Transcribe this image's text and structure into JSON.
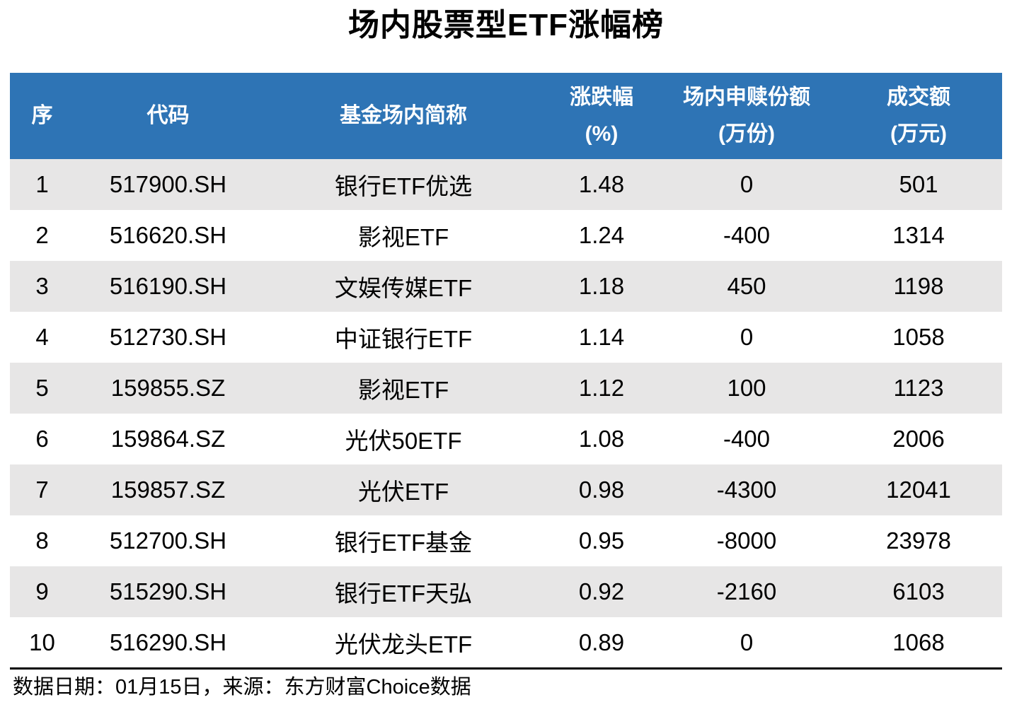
{
  "title": "场内股票型ETF涨幅榜",
  "table": {
    "columns": [
      {
        "label": "序",
        "unit": ""
      },
      {
        "label": "代码",
        "unit": ""
      },
      {
        "label": "基金场内简称",
        "unit": ""
      },
      {
        "label": "涨跌幅",
        "unit": "(%)"
      },
      {
        "label": "场内申赎份额",
        "unit": "(万份)"
      },
      {
        "label": "成交额",
        "unit": "(万元)"
      }
    ],
    "rows": [
      {
        "rank": "1",
        "code": "517900.SH",
        "name": "银行ETF优选",
        "change": "1.48",
        "shares": "0",
        "turnover": "501"
      },
      {
        "rank": "2",
        "code": "516620.SH",
        "name": "影视ETF",
        "change": "1.24",
        "shares": "-400",
        "turnover": "1314"
      },
      {
        "rank": "3",
        "code": "516190.SH",
        "name": "文娱传媒ETF",
        "change": "1.18",
        "shares": "450",
        "turnover": "1198"
      },
      {
        "rank": "4",
        "code": "512730.SH",
        "name": "中证银行ETF",
        "change": "1.14",
        "shares": "0",
        "turnover": "1058"
      },
      {
        "rank": "5",
        "code": "159855.SZ",
        "name": "影视ETF",
        "change": "1.12",
        "shares": "100",
        "turnover": "1123"
      },
      {
        "rank": "6",
        "code": "159864.SZ",
        "name": "光伏50ETF",
        "change": "1.08",
        "shares": "-400",
        "turnover": "2006"
      },
      {
        "rank": "7",
        "code": "159857.SZ",
        "name": "光伏ETF",
        "change": "0.98",
        "shares": "-4300",
        "turnover": "12041"
      },
      {
        "rank": "8",
        "code": "512700.SH",
        "name": "银行ETF基金",
        "change": "0.95",
        "shares": "-8000",
        "turnover": "23978"
      },
      {
        "rank": "9",
        "code": "515290.SH",
        "name": "银行ETF天弘",
        "change": "0.92",
        "shares": "-2160",
        "turnover": "6103"
      },
      {
        "rank": "10",
        "code": "516290.SH",
        "name": "光伏龙头ETF",
        "change": "0.89",
        "shares": "0",
        "turnover": "1068"
      }
    ]
  },
  "footer": {
    "note": "数据日期：01月15日，来源：东方财富Choice数据"
  },
  "colors": {
    "header_bg": "#2E74B5",
    "header_text": "#FFFFFF",
    "stripe_bg": "#E7E6E6",
    "body_text": "#000000",
    "rule": "#000000"
  },
  "chart_data": {
    "type": "table",
    "title": "场内股票型ETF涨幅榜",
    "columns": [
      "序",
      "代码",
      "基金场内简称",
      "涨跌幅(%)",
      "场内申赎份额(万份)",
      "成交额(万元)"
    ],
    "rows": [
      [
        1,
        "517900.SH",
        "银行ETF优选",
        1.48,
        0,
        501
      ],
      [
        2,
        "516620.SH",
        "影视ETF",
        1.24,
        -400,
        1314
      ],
      [
        3,
        "516190.SH",
        "文娱传媒ETF",
        1.18,
        450,
        1198
      ],
      [
        4,
        "512730.SH",
        "中证银行ETF",
        1.14,
        0,
        1058
      ],
      [
        5,
        "159855.SZ",
        "影视ETF",
        1.12,
        100,
        1123
      ],
      [
        6,
        "159864.SZ",
        "光伏50ETF",
        1.08,
        -400,
        2006
      ],
      [
        7,
        "159857.SZ",
        "光伏ETF",
        0.98,
        -4300,
        12041
      ],
      [
        8,
        "512700.SH",
        "银行ETF基金",
        0.95,
        -8000,
        23978
      ],
      [
        9,
        "515290.SH",
        "银行ETF天弘",
        0.92,
        -2160,
        6103
      ],
      [
        10,
        "516290.SH",
        "光伏龙头ETF",
        0.89,
        0,
        1068
      ]
    ],
    "source_note": "数据日期：01月15日，来源：东方财富Choice数据"
  }
}
